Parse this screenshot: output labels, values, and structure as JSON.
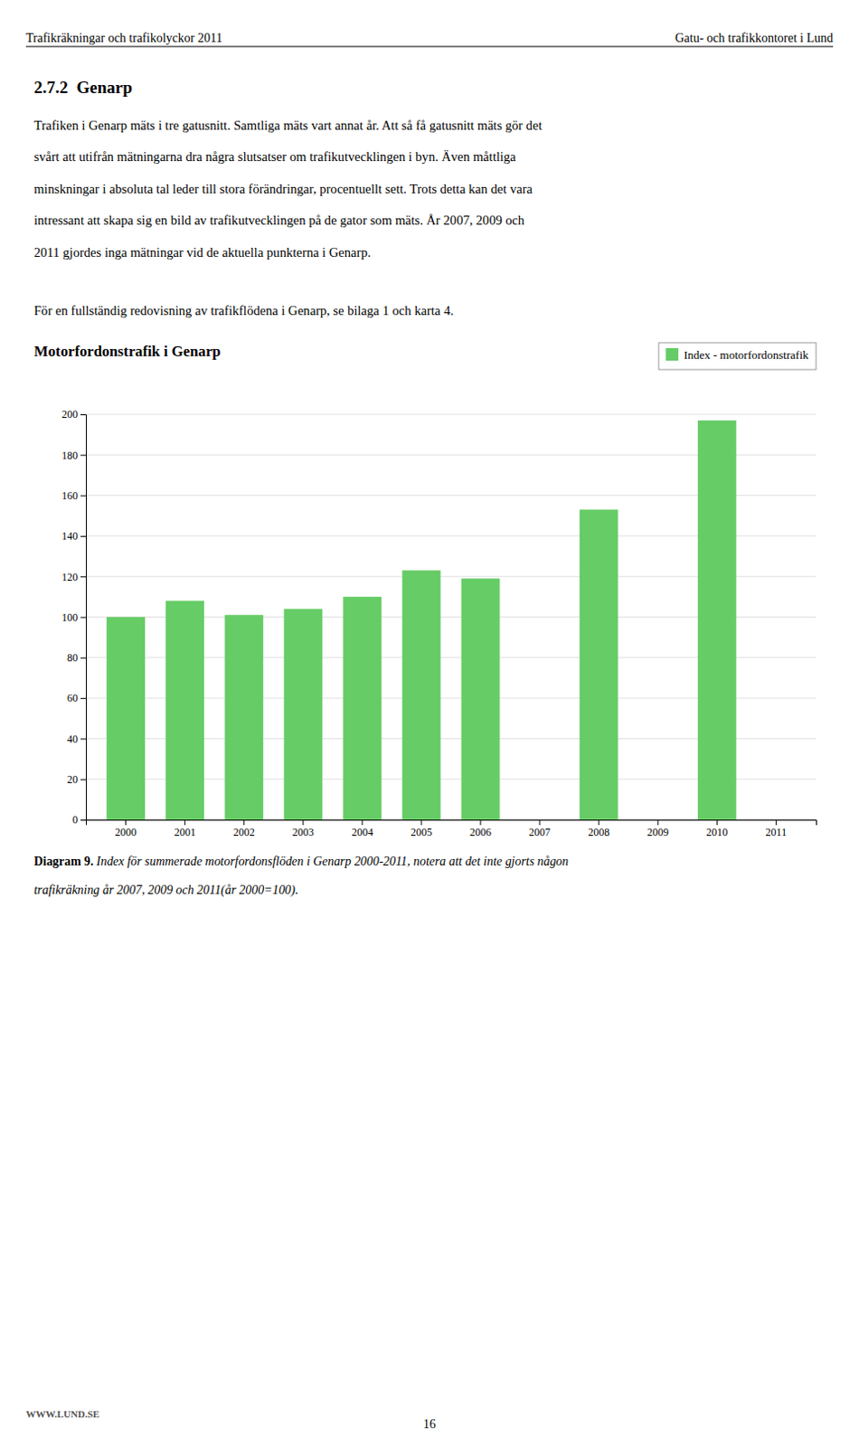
{
  "chart_data": {
    "type": "bar",
    "title": "Motorfordonstrafik i Genarp",
    "categories": [
      "2000",
      "2001",
      "2002",
      "2003",
      "2004",
      "2005",
      "2006",
      "2007",
      "2008",
      "2009",
      "2010",
      "2011"
    ],
    "series": [
      {
        "name": "Index - motorfordonstrafik",
        "color": "#66CC66",
        "values": [
          100,
          108,
          101,
          104,
          110,
          123,
          119,
          null,
          153,
          null,
          197,
          null
        ]
      }
    ],
    "ylim": [
      0,
      200
    ],
    "yticks": [
      0,
      20,
      40,
      60,
      80,
      100,
      120,
      140,
      160,
      180,
      200
    ],
    "grid": true,
    "legend": "upper right"
  },
  "page": {
    "header_left": "Trafikräkningar och trafikolyckor 2011",
    "header_right": "Gatu- och trafikkontoret i Lund",
    "section_title": "2.7.2  Genarp",
    "body_lines": [
      "Trafiken i Genarp mäts i tre gatusnitt. Samtliga mäts vart annat år. Att så få gatusnitt mäts gör det",
      "svårt att utifrån mätningarna dra några slutsatser om trafikutvecklingen i byn. Även måttliga",
      "minskningar i absoluta tal leder till stora förändringar, procentuellt sett. Trots detta kan det vara",
      "intressant att skapa sig en bild av trafikutvecklingen på de gator som mäts. År 2007, 2009 och",
      "2011 gjordes inga mätningar vid de aktuella punkterna i Genarp."
    ],
    "link_line": "För en fullständig redovisning av trafikflödena i Genarp, se bilaga 1 och karta 4.",
    "caption_bold": "Diagram 9.",
    "caption_lines": [
      " Index för summerade motorfordonsflöden i Genarp 2000-2011, notera att det inte gjorts någon",
      "trafikräkning år 2007, 2009 och 2011(år 2000=100)."
    ],
    "footer_left": "WWW.LUND.SE",
    "footer_text": "16"
  }
}
